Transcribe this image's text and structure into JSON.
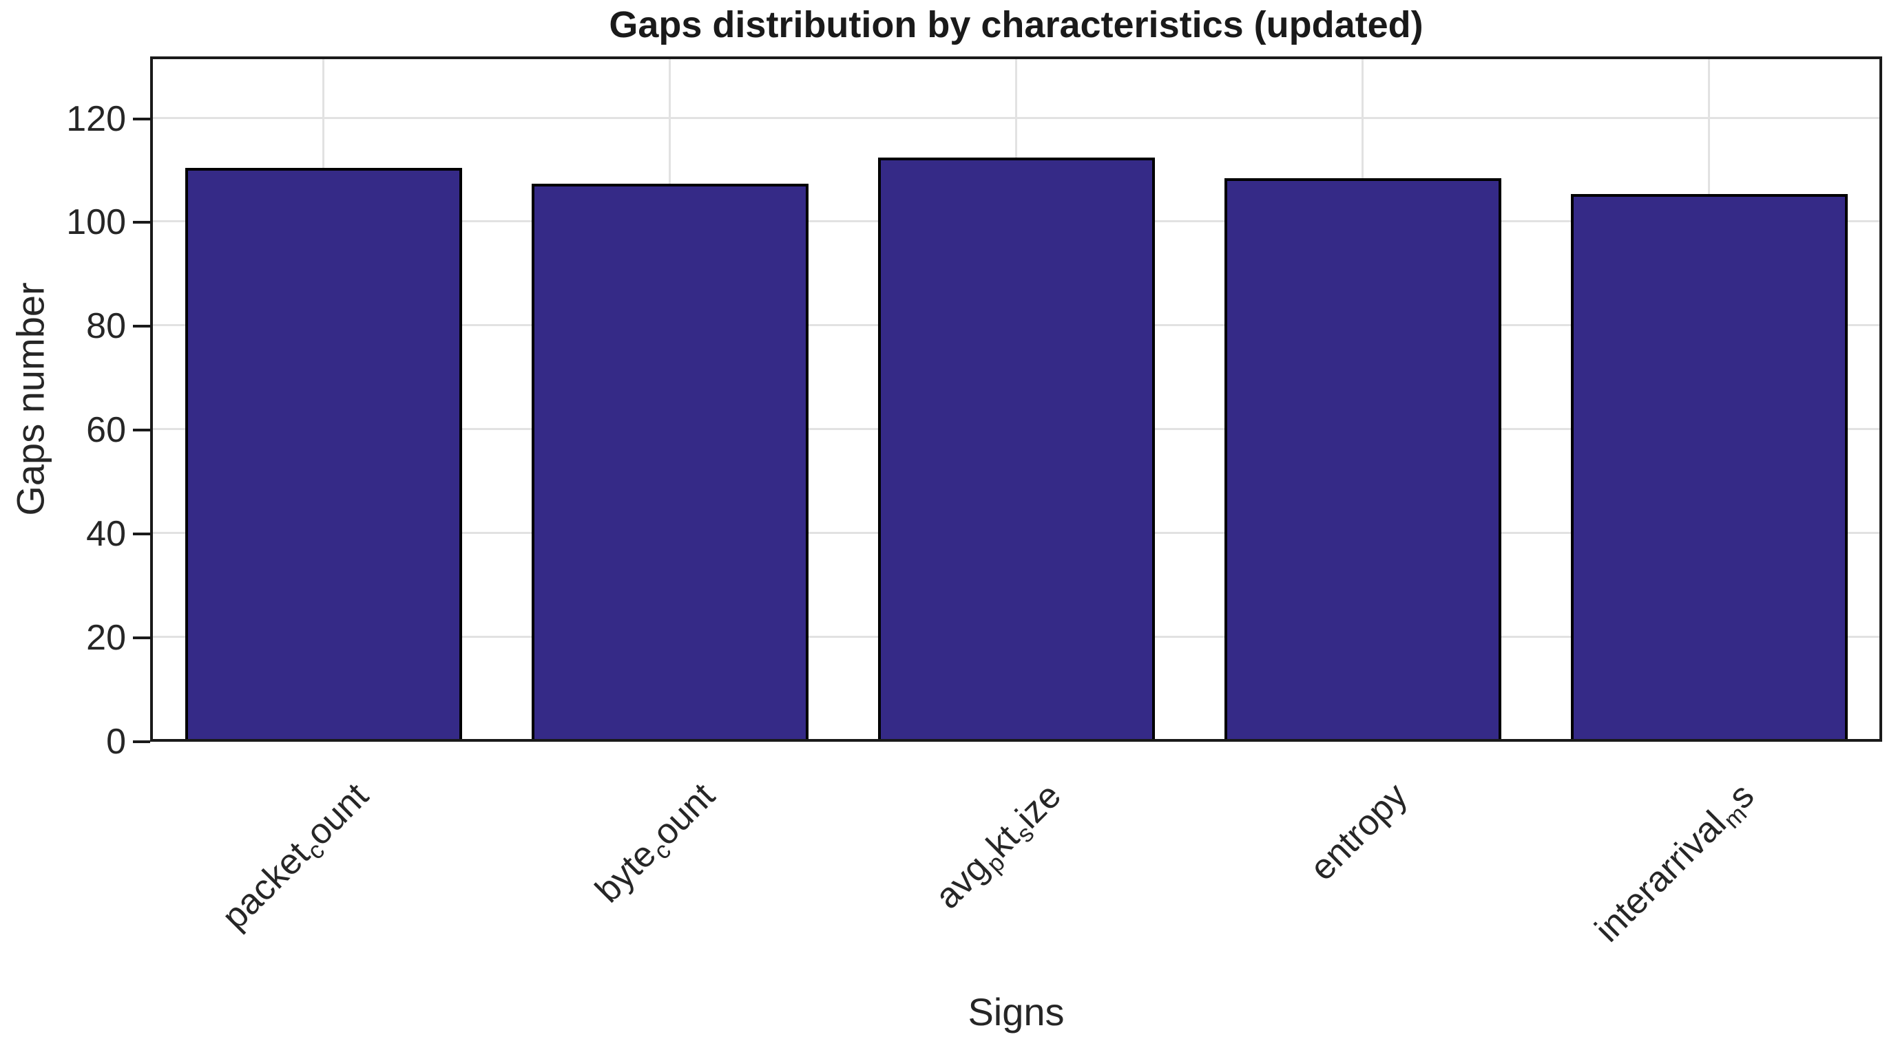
{
  "chart_data": {
    "type": "bar",
    "title": "Gaps distribution by characteristics (updated)",
    "xlabel": "Signs",
    "ylabel": "Gaps number",
    "categories": [
      "packet_count",
      "byte_count",
      "avg_pkt_size",
      "entropy",
      "interarrival_ms"
    ],
    "tick_label_segments": [
      [
        {
          "t": "packet"
        },
        {
          "t": "c",
          "sub": true
        },
        {
          "t": "ount"
        }
      ],
      [
        {
          "t": "byte"
        },
        {
          "t": "c",
          "sub": true
        },
        {
          "t": "ount"
        }
      ],
      [
        {
          "t": "avg"
        },
        {
          "t": "p",
          "sub": true
        },
        {
          "t": "kt"
        },
        {
          "t": "s",
          "sub": true
        },
        {
          "t": "ize"
        }
      ],
      [
        {
          "t": "entropy"
        }
      ],
      [
        {
          "t": "interarrival"
        },
        {
          "t": "m",
          "sub": true
        },
        {
          "t": "s"
        }
      ]
    ],
    "values": [
      110,
      107,
      112,
      108,
      105
    ],
    "yticks": [
      0,
      20,
      40,
      60,
      80,
      100,
      120
    ],
    "ylim": [
      0,
      132
    ],
    "grid": true,
    "legend": null,
    "bar_color": "#352A87",
    "bar_edge_color": "#000000",
    "axis_color": "#1a1a1a",
    "grid_color": "#e2e2e2",
    "background": "#ffffff"
  }
}
